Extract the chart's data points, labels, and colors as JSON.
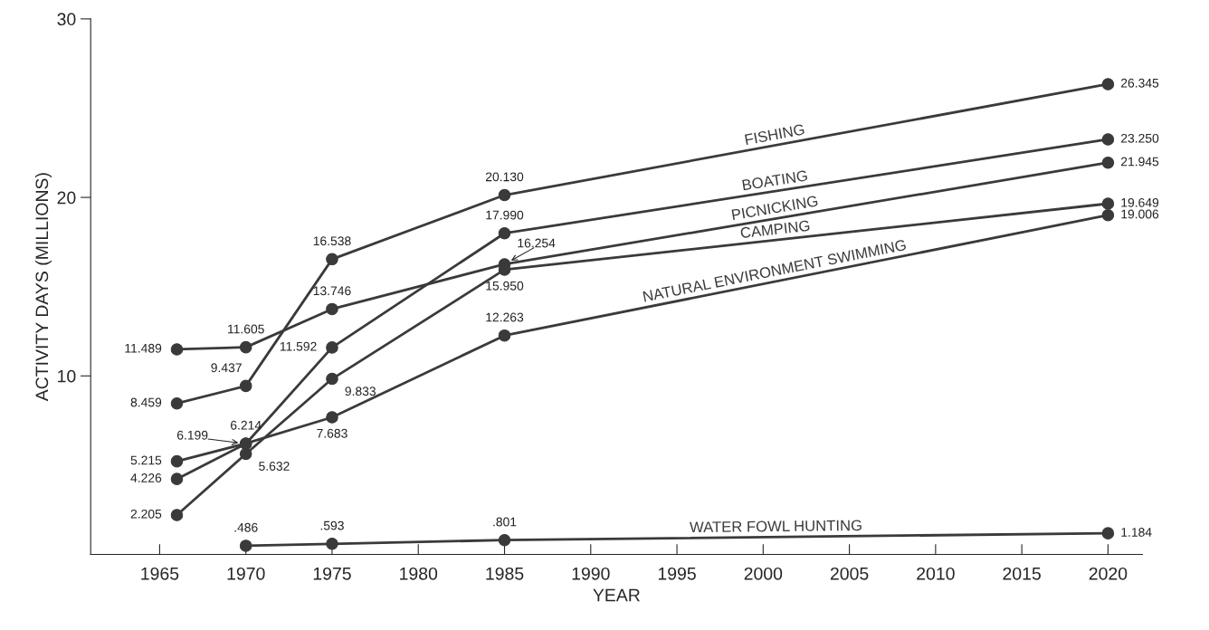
{
  "chart_data": {
    "type": "line",
    "xlabel": "YEAR",
    "ylabel": "ACTIVITY DAYS (MILLIONS)",
    "xlim": [
      1961,
      2022
    ],
    "ylim": [
      0,
      30
    ],
    "xticks": [
      1965,
      1970,
      1975,
      1980,
      1985,
      1990,
      1995,
      2000,
      2005,
      2010,
      2015,
      2020
    ],
    "yticks": [
      10,
      20,
      30
    ],
    "marker": "circle",
    "line_style": "solid",
    "grid": false,
    "legend": false,
    "series": [
      {
        "name": "FISHING",
        "color": "#3a3a3a",
        "x": [
          1966,
          1970,
          1975,
          1985,
          2020
        ],
        "values": [
          8.459,
          9.437,
          16.538,
          20.13,
          26.345
        ],
        "value_labels": [
          "8.459",
          "9.437",
          "16.538",
          "20.130",
          "26.345"
        ]
      },
      {
        "name": "BOATING",
        "color": "#3a3a3a",
        "x": [
          1966,
          1970,
          1975,
          1985,
          2020
        ],
        "values": [
          4.226,
          6.199,
          11.592,
          17.99,
          23.25
        ],
        "value_labels": [
          "4.226",
          "6.199",
          "11.592",
          "17.990",
          "23.250"
        ]
      },
      {
        "name": "PICNICKING",
        "color": "#3a3a3a",
        "x": [
          1966,
          1970,
          1975,
          1985,
          2020
        ],
        "values": [
          11.489,
          11.605,
          13.746,
          16.254,
          21.945
        ],
        "value_labels": [
          "11.489",
          "11.605",
          "13.746",
          "16.254",
          "21.945"
        ]
      },
      {
        "name": "CAMPING",
        "color": "#3a3a3a",
        "x": [
          1966,
          1970,
          1975,
          1985,
          2020
        ],
        "values": [
          2.205,
          5.632,
          9.833,
          15.95,
          19.649
        ],
        "value_labels": [
          "2.205",
          "5.632",
          "9.833",
          "15.950",
          "19.649"
        ]
      },
      {
        "name": "NATURAL ENVIRONMENT SWIMMING",
        "color": "#3a3a3a",
        "x": [
          1966,
          1970,
          1975,
          1985,
          2020
        ],
        "values": [
          5.215,
          6.214,
          7.683,
          12.263,
          19.006
        ],
        "value_labels": [
          "5.215",
          "6.214",
          "7.683",
          "12.263",
          "19.006"
        ]
      },
      {
        "name": "WATER FOWL HUNTING",
        "color": "#3a3a3a",
        "x": [
          1970,
          1975,
          1985,
          2020
        ],
        "values": [
          0.486,
          0.593,
          0.801,
          1.184
        ],
        "value_labels": [
          ".486",
          ".593",
          ".801",
          "1.184"
        ]
      }
    ]
  }
}
